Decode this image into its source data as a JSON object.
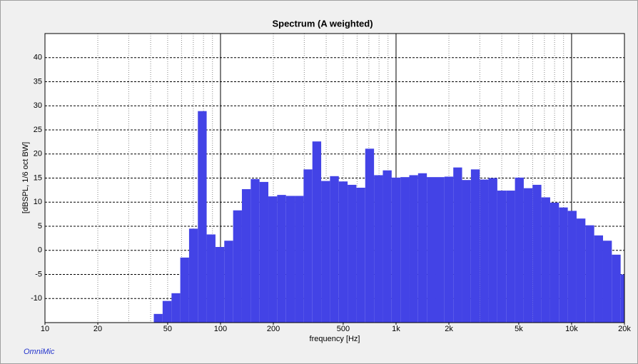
{
  "chart_data": {
    "type": "histogram",
    "title": "Spectrum (A weighted)",
    "xlabel": "frequency [Hz]",
    "ylabel": "[dBSPL, 1/6 oct BW]",
    "brand": "OmniMic",
    "color": "#4343e6",
    "xscale": "log",
    "xlim": [
      10,
      20000
    ],
    "ylim": [
      -15,
      45
    ],
    "xticks": [
      10,
      20,
      50,
      100,
      200,
      500,
      {
        "value": 1000,
        "label": "1k"
      },
      {
        "value": 2000,
        "label": "2k"
      },
      {
        "value": 5000,
        "label": "5k"
      },
      {
        "value": 10000,
        "label": "10k"
      },
      {
        "value": 20000,
        "label": "20k"
      }
    ],
    "xgrid": [
      20,
      30,
      40,
      50,
      60,
      70,
      80,
      90,
      100,
      200,
      300,
      400,
      500,
      600,
      700,
      800,
      900,
      1000,
      2000,
      3000,
      4000,
      5000,
      6000,
      7000,
      8000,
      9000,
      10000
    ],
    "yticks": [
      -10,
      -5,
      0,
      5,
      10,
      15,
      20,
      25,
      30,
      35,
      40
    ],
    "grid": true,
    "bins": [
      41.7,
      46.8,
      52.6,
      59.0,
      66.2,
      74.3,
      83.4,
      93.6,
      105.1,
      118.0,
      132.4,
      148.7,
      166.9,
      187.3,
      210.2,
      236.0,
      264.9,
      297.3,
      333.7,
      374.6,
      420.4,
      471.9,
      529.7,
      594.6,
      667.4,
      749.2,
      840.9,
      943.9,
      1059.5,
      1189.2,
      1334.8,
      1498.3,
      1681.8,
      1887.7,
      2118.9,
      2378.4,
      2669.6,
      2996.6,
      3363.6,
      3775.5,
      4237.8,
      4756.8,
      5339.3,
      5993.1,
      6727.2,
      7551.0,
      8475.7,
      9513.7,
      10679,
      11986,
      13454,
      15102,
      16951,
      19027,
      21357
    ],
    "values": [
      -13.2,
      -10.5,
      -8.9,
      -1.5,
      4.5,
      28.9,
      3.3,
      0.7,
      2.0,
      8.3,
      12.7,
      14.8,
      14.2,
      11.2,
      11.5,
      11.3,
      11.3,
      16.8,
      22.6,
      14.4,
      15.4,
      14.3,
      13.6,
      13.0,
      21.1,
      15.6,
      16.6,
      15.1,
      15.2,
      15.6,
      16.0,
      15.2,
      15.2,
      15.3,
      17.2,
      14.6,
      16.8,
      14.7,
      15.0,
      12.4,
      12.4,
      15.1,
      12.9,
      13.6,
      11.0,
      9.9,
      8.9,
      8.2,
      6.6,
      5.2,
      3.1,
      2.0,
      -0.9,
      -5.0
    ]
  }
}
